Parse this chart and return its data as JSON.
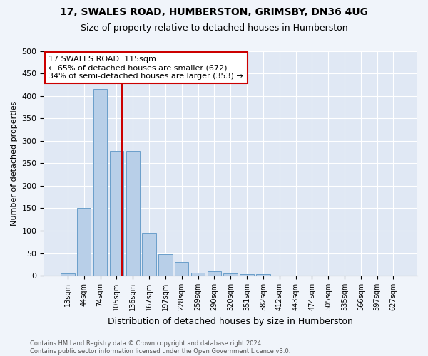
{
  "title1": "17, SWALES ROAD, HUMBERSTON, GRIMSBY, DN36 4UG",
  "title2": "Size of property relative to detached houses in Humberston",
  "xlabel": "Distribution of detached houses by size in Humberston",
  "ylabel": "Number of detached properties",
  "footnote": "Contains HM Land Registry data © Crown copyright and database right 2024.\nContains public sector information licensed under the Open Government Licence v3.0.",
  "bar_labels": [
    "13sqm",
    "44sqm",
    "74sqm",
    "105sqm",
    "136sqm",
    "167sqm",
    "197sqm",
    "228sqm",
    "259sqm",
    "290sqm",
    "320sqm",
    "351sqm",
    "382sqm",
    "412sqm",
    "443sqm",
    "474sqm",
    "505sqm",
    "535sqm",
    "566sqm",
    "597sqm",
    "627sqm"
  ],
  "bar_values": [
    5,
    151,
    416,
    278,
    278,
    95,
    48,
    30,
    7,
    10,
    5,
    3,
    3,
    0,
    0,
    0,
    0,
    0,
    0,
    0,
    0
  ],
  "bar_color": "#b8cfe8",
  "bar_edge_color": "#6a9fca",
  "vline_x": 3.32,
  "vline_color": "#cc0000",
  "annotation_text": "17 SWALES ROAD: 115sqm\n← 65% of detached houses are smaller (672)\n34% of semi-detached houses are larger (353) →",
  "annotation_box_color": "#ffffff",
  "annotation_box_edge": "#cc0000",
  "ylim": [
    0,
    500
  ],
  "yticks": [
    0,
    50,
    100,
    150,
    200,
    250,
    300,
    350,
    400,
    450,
    500
  ],
  "background_color": "#f0f4fa",
  "plot_bg_color": "#e0e8f4",
  "title1_fontsize": 10,
  "title2_fontsize": 9,
  "ylabel_fontsize": 8,
  "xlabel_fontsize": 9,
  "tick_fontsize": 7,
  "annot_fontsize": 8,
  "footnote_fontsize": 6
}
